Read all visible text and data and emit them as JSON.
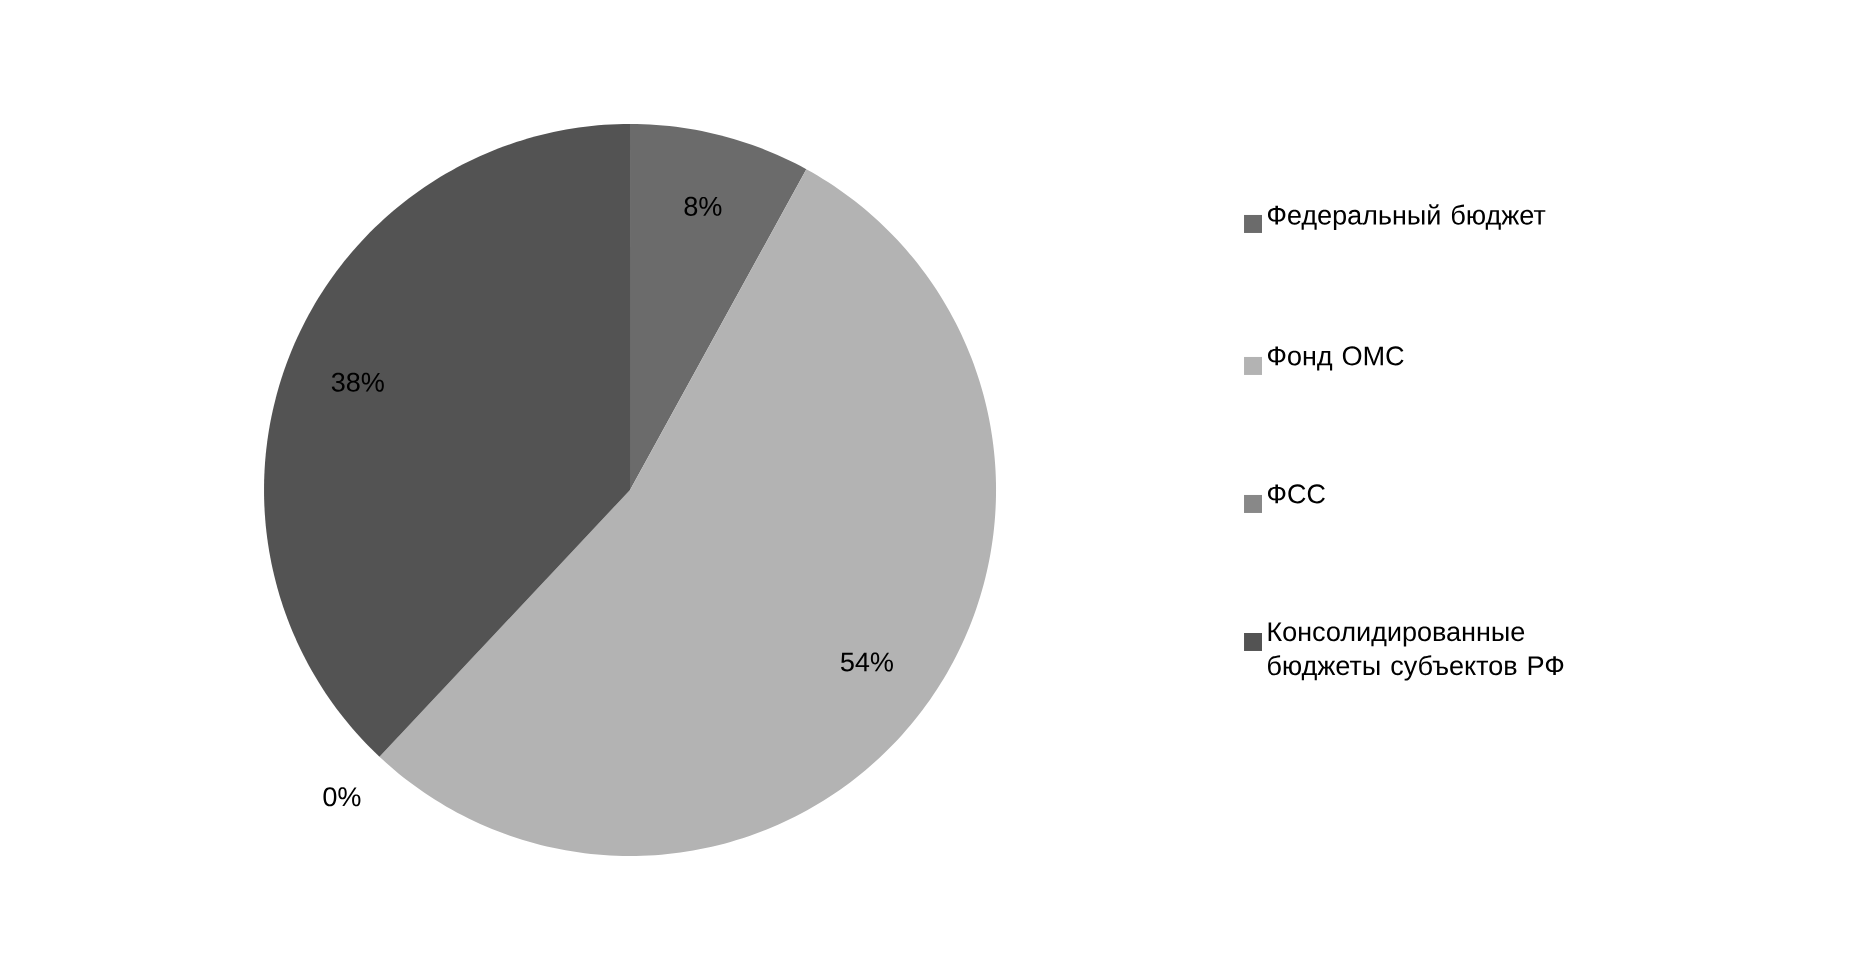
{
  "chart_data": {
    "type": "pie",
    "categories": [
      "Федеральный бюджет",
      "Фонд ОМС",
      "ФСС",
      "Консолидированные бюджеты субъектов РФ"
    ],
    "values": [
      8,
      54,
      0,
      38
    ],
    "value_labels": [
      "8%",
      "54%",
      "0%",
      "38%"
    ],
    "colors": [
      "#6b6b6b",
      "#b3b3b3",
      "#888888",
      "#535353"
    ],
    "legend": "right"
  }
}
